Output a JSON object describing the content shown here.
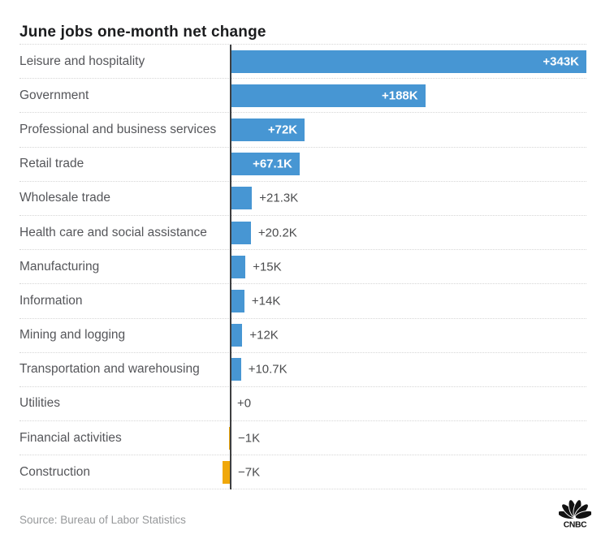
{
  "title": "June jobs one-month net change",
  "source": "Source: Bureau of Labor Statistics",
  "branding": {
    "logo": "cnbc-peacock-logo",
    "logo_text": "CNBC",
    "logo_color": "#111111"
  },
  "colors": {
    "positive_bar": "#4796d3",
    "negative_bar": "#f0a80a",
    "axis_line": "#3e3f41",
    "title_text": "#1b1c1e",
    "category_text": "#55565a",
    "value_outside_text": "#4b4c4e",
    "value_inside_text": "#ffffff",
    "separator": "#d6d6d6",
    "source_text": "#96989a"
  },
  "chart_data": {
    "type": "bar",
    "orientation": "horizontal",
    "title": "June jobs one-month net change",
    "xlabel": "",
    "ylabel": "",
    "grid": "dotted row separators only",
    "baseline": 0,
    "xlim_k": [
      -20,
      343
    ],
    "categories": [
      "Leisure and hospitality",
      "Government",
      "Professional and business services",
      "Retail trade",
      "Wholesale trade",
      "Health care and social assistance",
      "Manufacturing",
      "Information",
      "Mining and logging",
      "Transportation and warehousing",
      "Utilities",
      "Financial activities",
      "Construction"
    ],
    "values_k": [
      343,
      188,
      72,
      67.1,
      21.3,
      20.2,
      15,
      14,
      12,
      10.7,
      0,
      -1,
      -7
    ],
    "value_labels": [
      "+343K",
      "+188K",
      "+72K",
      "+67.1K",
      "+21.3K",
      "+20.2K",
      "+15K",
      "+14K",
      "+12K",
      "+10.7K",
      "+0",
      "−1K",
      "−7K"
    ]
  }
}
